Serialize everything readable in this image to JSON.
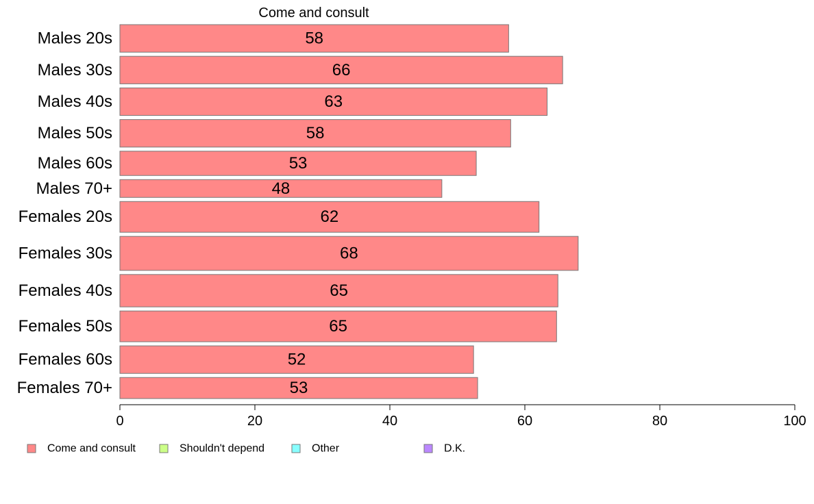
{
  "chart_data": {
    "type": "bar",
    "orientation": "horizontal",
    "title": "Come and consult",
    "categories": [
      "Males 20s",
      "Males 30s",
      "Males 40s",
      "Males 50s",
      "Males 60s",
      "Males 70+",
      "Females 20s",
      "Females 30s",
      "Females 40s",
      "Females 50s",
      "Females 60s",
      "Females 70+"
    ],
    "series": [
      {
        "name": "Come and consult",
        "color": "#ff8888",
        "values": [
          57.6,
          65.6,
          63.3,
          57.9,
          52.8,
          47.7,
          62.1,
          67.9,
          64.9,
          64.7,
          52.4,
          53.0
        ],
        "labels": [
          "58",
          "66",
          "63",
          "58",
          "53",
          "48",
          "62",
          "68",
          "65",
          "65",
          "52",
          "53"
        ]
      }
    ],
    "xlim": [
      0,
      100
    ],
    "xticks": [
      0,
      20,
      40,
      60,
      80,
      100
    ],
    "xtick_labels": [
      "0",
      "20",
      "40",
      "60",
      "80",
      "100"
    ],
    "group_weights": [
      0.85,
      0.85,
      0.85,
      0.85,
      0.75,
      0.55,
      0.95,
      1.05,
      1.0,
      0.95,
      0.85,
      0.65
    ],
    "grid": false,
    "legend": {
      "placement": "bottom",
      "items": [
        {
          "label": "Come and consult",
          "color": "#ff8888"
        },
        {
          "label": "Shouldn't depend",
          "color": "#ccff88"
        },
        {
          "label": "Other",
          "color": "#88ffff"
        },
        {
          "label": "D.K.",
          "color": "#bb88ff"
        }
      ]
    }
  }
}
